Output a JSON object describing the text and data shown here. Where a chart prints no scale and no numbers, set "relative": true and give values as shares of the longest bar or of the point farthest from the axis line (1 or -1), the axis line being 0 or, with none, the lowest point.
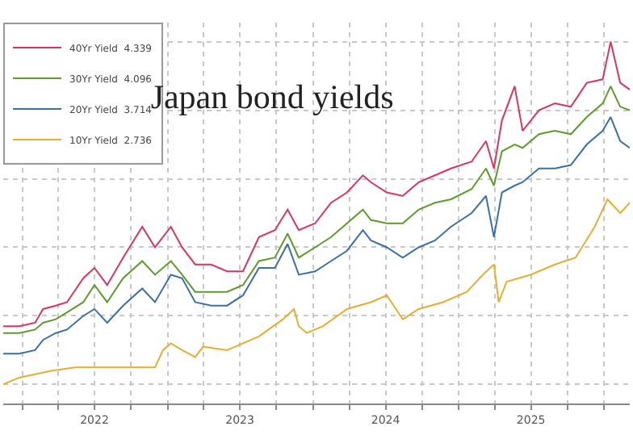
{
  "chart_data": {
    "type": "line",
    "title": "Japan bond yields",
    "relative": true,
    "grid": true,
    "legend": "top left",
    "marker": "none",
    "line_style": "solid",
    "xlim": [
      "2021-11-14",
      "2026-03-06"
    ],
    "xticks": [
      {
        "value": "2022-01-01",
        "label": null
      },
      {
        "value": "2022-04-01",
        "label": null
      },
      {
        "value": "2022-07-01",
        "label": "2022"
      },
      {
        "value": "2022-10-01",
        "label": null
      },
      {
        "value": "2023-01-01",
        "label": null
      },
      {
        "value": "2023-04-01",
        "label": null
      },
      {
        "value": "2023-07-01",
        "label": "2023"
      },
      {
        "value": "2023-10-01",
        "label": null
      },
      {
        "value": "2024-01-01",
        "label": null
      },
      {
        "value": "2024-04-01",
        "label": null
      },
      {
        "value": "2024-07-01",
        "label": "2024"
      },
      {
        "value": "2024-10-01",
        "label": null
      },
      {
        "value": "2025-01-01",
        "label": null
      },
      {
        "value": "2025-04-01",
        "label": null
      },
      {
        "value": "2025-07-01",
        "label": "2025"
      },
      {
        "value": "2025-10-01",
        "label": null
      },
      {
        "value": "2026-01-01",
        "label": null
      }
    ],
    "x": [
      "2021-11-14",
      "2021-12-24",
      "2022-02-02",
      "2022-02-22",
      "2022-03-26",
      "2022-04-23",
      "2022-06-03",
      "2022-07-01",
      "2022-08-02",
      "2022-09-11",
      "2022-10-29",
      "2022-11-30",
      "2023-01-09",
      "2023-02-06",
      "2023-03-11",
      "2023-04-20",
      "2023-05-30",
      "2023-07-09",
      "2023-08-18",
      "2023-09-27",
      "2023-10-29",
      "2023-11-26",
      "2024-01-06",
      "2024-02-15",
      "2024-03-26",
      "2024-05-05",
      "2024-05-25",
      "2024-07-04",
      "2024-08-13",
      "2024-09-22",
      "2024-11-02",
      "2024-12-12",
      "2025-02-02",
      "2025-03-10",
      "2025-03-30",
      "2025-04-19",
      "2025-05-21",
      "2025-06-10",
      "2025-07-21",
      "2025-08-30",
      "2025-10-09",
      "2025-11-18",
      "2025-12-28",
      "2026-01-17",
      "2026-02-10",
      "2026-03-06"
    ],
    "series": [
      {
        "name": "40Yr Yield  4.339",
        "color": "#d9365f",
        "values": [
          0.17,
          0.17,
          0.18,
          0.22,
          0.23,
          0.24,
          0.31,
          0.34,
          0.29,
          0.37,
          0.46,
          0.4,
          0.46,
          0.4,
          0.35,
          0.35,
          0.33,
          0.33,
          0.43,
          0.45,
          0.51,
          0.45,
          0.47,
          0.53,
          0.56,
          0.61,
          0.59,
          0.56,
          0.55,
          0.59,
          0.61,
          0.63,
          0.65,
          0.71,
          0.63,
          0.77,
          0.87,
          0.74,
          0.8,
          0.82,
          0.81,
          0.88,
          0.89,
          1,
          0.88,
          0.86
        ]
      },
      {
        "name": "30Yr Yield  4.096",
        "color": "#5e9a2c",
        "values": [
          0.15,
          0.15,
          0.16,
          0.18,
          0.19,
          0.21,
          0.24,
          0.29,
          0.24,
          0.31,
          0.36,
          0.32,
          0.36,
          0.32,
          0.27,
          0.27,
          0.27,
          0.29,
          0.36,
          0.37,
          0.44,
          0.37,
          0.4,
          0.43,
          0.47,
          0.51,
          0.48,
          0.47,
          0.47,
          0.51,
          0.53,
          0.54,
          0.57,
          0.63,
          0.58,
          0.68,
          0.7,
          0.69,
          0.73,
          0.74,
          0.73,
          0.78,
          0.82,
          0.87,
          0.81,
          0.8
        ]
      },
      {
        "name": "20Yr Yield  3.714",
        "color": "#3a70a6",
        "values": [
          0.09,
          0.09,
          0.1,
          0.13,
          0.15,
          0.16,
          0.2,
          0.22,
          0.18,
          0.23,
          0.28,
          0.24,
          0.32,
          0.31,
          0.24,
          0.23,
          0.23,
          0.26,
          0.34,
          0.34,
          0.41,
          0.32,
          0.33,
          0.36,
          0.39,
          0.45,
          0.42,
          0.4,
          0.37,
          0.4,
          0.42,
          0.46,
          0.5,
          0.55,
          0.43,
          0.56,
          0.58,
          0.59,
          0.63,
          0.63,
          0.64,
          0.7,
          0.74,
          0.78,
          0.71,
          0.69
        ]
      },
      {
        "name": "10Yr Yield  2.736",
        "color": "#e6ae2e",
        "x": [
          "2021-11-14",
          "2021-12-24",
          "2022-02-02",
          "2022-03-14",
          "2022-05-13",
          "2022-07-13",
          "2022-10-01",
          "2022-11-30",
          "2022-12-20",
          "2023-01-09",
          "2023-02-06",
          "2023-03-11",
          "2023-03-31",
          "2023-05-30",
          "2023-07-09",
          "2023-08-18",
          "2023-10-17",
          "2023-11-14",
          "2023-11-26",
          "2023-12-16",
          "2024-01-26",
          "2024-03-26",
          "2024-05-25",
          "2024-07-04",
          "2024-08-13",
          "2024-09-22",
          "2024-11-22",
          "2025-01-21",
          "2025-03-02",
          "2025-03-30",
          "2025-04-11",
          "2025-05-01",
          "2025-06-30",
          "2025-08-30",
          "2025-10-21",
          "2025-12-08",
          "2026-01-09",
          "2026-02-10",
          "2026-03-06"
        ],
        "values": [
          0,
          0.02,
          0.03,
          0.04,
          0.05,
          0.05,
          0.05,
          0.05,
          0.1,
          0.12,
          0.1,
          0.08,
          0.11,
          0.1,
          0.12,
          0.14,
          0.19,
          0.22,
          0.17,
          0.15,
          0.17,
          0.22,
          0.24,
          0.26,
          0.19,
          0.22,
          0.24,
          0.27,
          0.32,
          0.35,
          0.24,
          0.3,
          0.32,
          0.35,
          0.37,
          0.46,
          0.54,
          0.5,
          0.53
        ]
      }
    ]
  }
}
